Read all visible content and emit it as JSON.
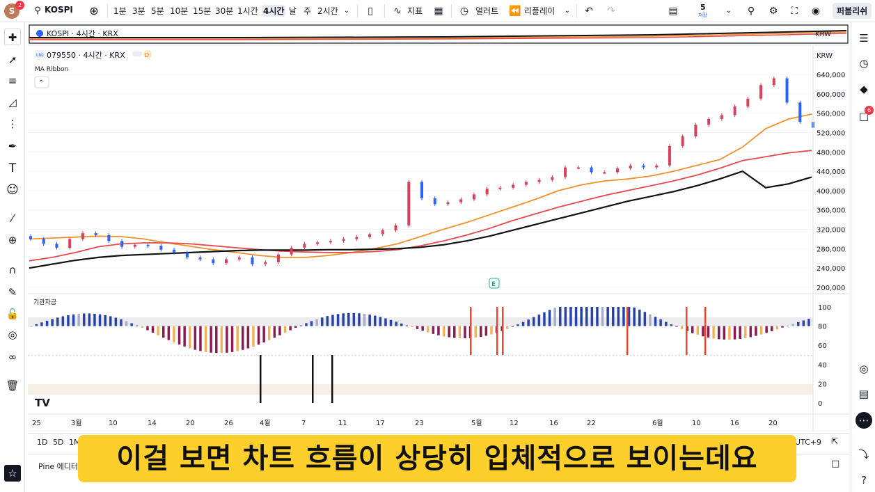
{
  "topbar": {
    "avatar_letter": "S",
    "avatar_badge": "2",
    "symbol": "KOSPI",
    "intervals": [
      "1분",
      "3분",
      "5분",
      "10분",
      "15분",
      "30분",
      "1시간",
      "4시간",
      "날",
      "주",
      "2시간"
    ],
    "active_interval": "4시간",
    "indicators_label": "지표",
    "alert_label": "얼러트",
    "replay_label": "리플레이",
    "layout_count": "5",
    "layout_sub": "저장",
    "publish_label": "퍼블리쉬"
  },
  "overview": {
    "symbol_label": "KOSPI · 4시간 · KRX",
    "currency": "KRW"
  },
  "main": {
    "legend_code": "079550 · 4시간 · KRX",
    "legend_flag": "D",
    "ma_label": "MA Ribbon",
    "currency": "KRW",
    "earnings_badge": "E",
    "price_ticks": [
      "640,000",
      "600,000",
      "560,000",
      "520,000",
      "480,000",
      "440,000",
      "400,000",
      "360,000",
      "320,000",
      "280,000",
      "240,000",
      "200,000"
    ]
  },
  "indicator": {
    "label": "기관자금",
    "ticks": [
      "100",
      "80",
      "60",
      "40",
      "20",
      "0"
    ]
  },
  "xaxis": {
    "labels": [
      "25",
      "3월",
      "10",
      "14",
      "20",
      "26",
      "4월",
      "7",
      "11",
      "17",
      "23",
      "5월",
      "12",
      "16",
      "22",
      "6월",
      "10",
      "16",
      "20"
    ]
  },
  "bottombar": {
    "ranges": [
      "1D",
      "5D",
      "1M"
    ],
    "timezone": "UTC+9"
  },
  "pinebar": {
    "label": "Pine 에디터"
  },
  "right": {
    "notif_badge": "6"
  },
  "subtitle": "이걸 보면 차트 흐름이 상당히 입체적으로 보이는데요",
  "colors": {
    "up": "#d7415a",
    "down": "#2962ff",
    "ma_orange": "#f0912a",
    "ma_red": "#e5484d",
    "ma_black": "#111111",
    "hist_maroon": "#8a1a52",
    "hist_orange": "#f2b25a",
    "hist_blue": "#2742a8",
    "hist_gray": "#a9b0c3",
    "vbar": "#e24b2f"
  },
  "chart_data": [
    {
      "type": "line",
      "title": "079550 · 4시간 · KRX",
      "ylim": [
        200000,
        660000
      ],
      "series": [
        {
          "name": "MA Ribbon",
          "values": [
            300000,
            302000,
            304000,
            306000,
            305000,
            300000,
            292000,
            285000,
            278000,
            272000,
            266000,
            262000,
            262000,
            266000,
            272000,
            280000,
            290000,
            305000,
            320000,
            334000,
            350000,
            366000,
            382000,
            400000,
            412000,
            420000,
            424000,
            430000,
            440000,
            452000,
            464000,
            490000,
            528000,
            548000,
            558000
          ]
        },
        {
          "name": "",
          "values": [
            255000,
            262000,
            272000,
            284000,
            290000,
            292000,
            292000,
            290000,
            286000,
            282000,
            278000,
            275000,
            273000,
            272000,
            272000,
            274000,
            278000,
            286000,
            296000,
            308000,
            322000,
            338000,
            352000,
            366000,
            378000,
            390000,
            400000,
            410000,
            420000,
            432000,
            446000,
            462000,
            470000,
            478000,
            483000
          ]
        },
        {
          "name": "",
          "values": [
            240000,
            248000,
            256000,
            262000,
            266000,
            268000,
            270000,
            272000,
            274000,
            276000,
            277000,
            277000,
            277000,
            278000,
            278000,
            279000,
            280000,
            283000,
            288000,
            296000,
            306000,
            318000,
            330000,
            342000,
            354000,
            366000,
            378000,
            388000,
            398000,
            410000,
            424000,
            440000,
            406000,
            414000,
            428000
          ]
        }
      ],
      "candles_close": [
        300000,
        290000,
        282000,
        300000,
        312000,
        308000,
        296000,
        284000,
        288000,
        286000,
        278000,
        272000,
        262000,
        258000,
        250000,
        258000,
        262000,
        248000,
        252000,
        268000,
        282000,
        290000,
        293000,
        296000,
        300000,
        304000,
        310000,
        318000,
        328000,
        418000,
        384000,
        372000,
        376000,
        382000,
        392000,
        404000,
        406000,
        412000,
        418000,
        422000,
        428000,
        448000,
        448000,
        438000,
        438000,
        446000,
        452000,
        448000,
        452000,
        492000,
        512000,
        536000,
        548000,
        556000,
        574000,
        590000,
        618000,
        632000,
        582000,
        542000,
        530000
      ]
    },
    {
      "type": "bar",
      "title": "기관자금",
      "ylim": [
        0,
        100
      ]
    }
  ]
}
